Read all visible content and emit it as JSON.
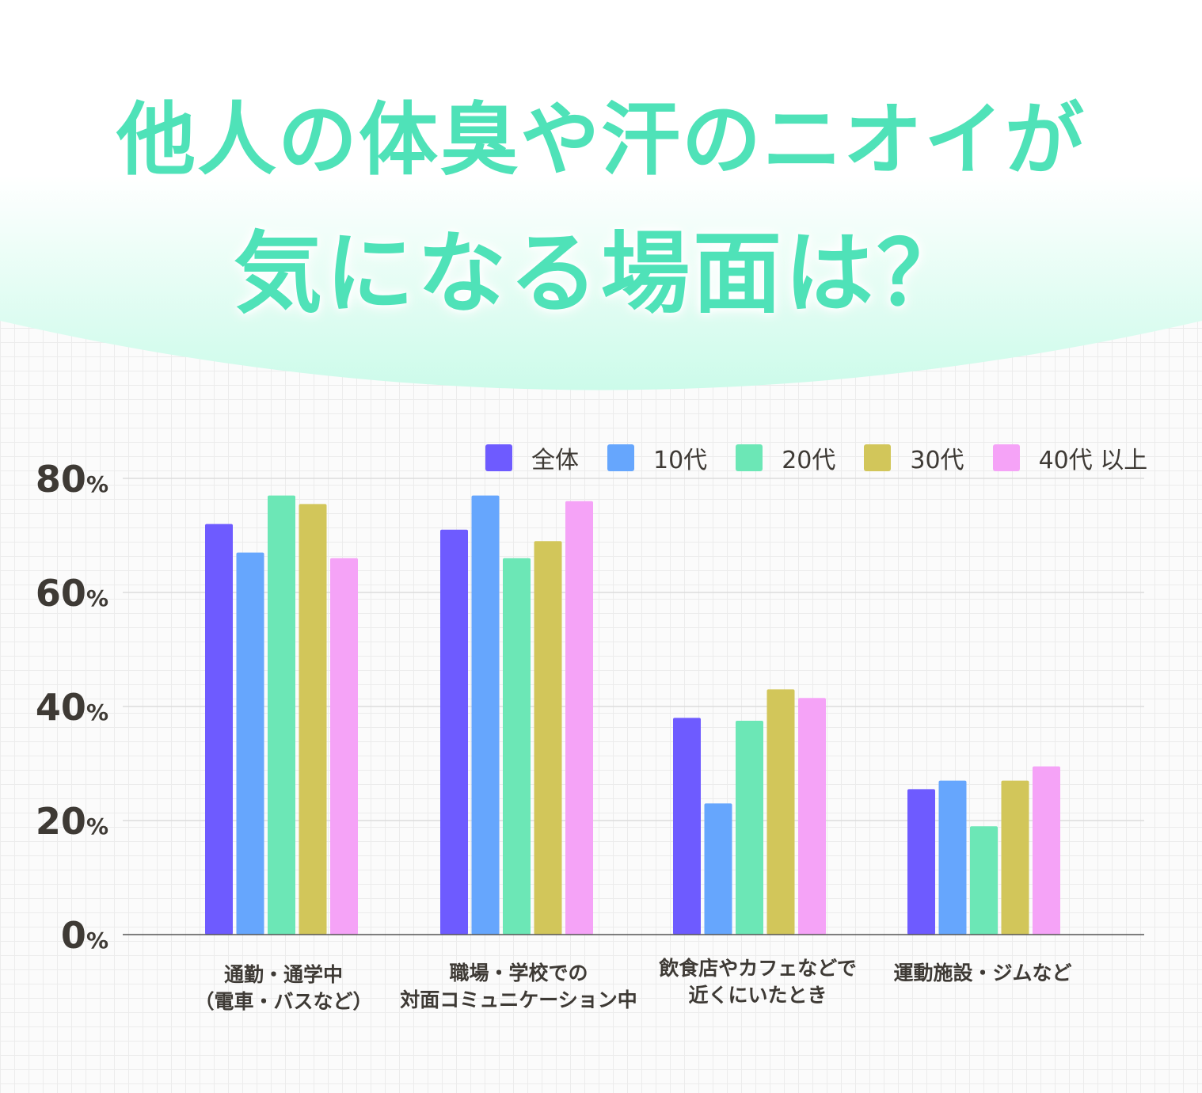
{
  "title_line1": "他人の体臭や汗のニオイが",
  "title_line2": "気になる場面は？",
  "chart_data": {
    "type": "bar",
    "title": "他人の体臭や汗のニオイが気になる場面は？",
    "categories": [
      [
        "通勤・通学中",
        "（電車・バスなど）"
      ],
      [
        "職場・学校での",
        "対面コミュニケーション中"
      ],
      [
        "飲食店やカフェなどで",
        "近くにいたとき"
      ],
      [
        "運動施設・ジムなど"
      ]
    ],
    "series": [
      {
        "name": "全体",
        "color": "#6e5bff",
        "values": [
          72,
          71,
          38,
          25.5
        ]
      },
      {
        "name": "10代",
        "color": "#66a6fd",
        "values": [
          67,
          77,
          23,
          27
        ]
      },
      {
        "name": "20代",
        "color": "#6ce7b6",
        "values": [
          77,
          66,
          37.5,
          19
        ]
      },
      {
        "name": "30代",
        "color": "#d2c65a",
        "values": [
          75.5,
          69,
          43,
          27
        ]
      },
      {
        "name": "40代以上",
        "color": "#f5a3f7",
        "values": [
          66,
          76,
          41.5,
          29.5
        ]
      }
    ],
    "legend_labels": [
      "全体",
      "10代",
      "20代",
      "30代",
      "40代 以上"
    ],
    "yticks": [
      "0",
      "20",
      "40",
      "60",
      "80"
    ],
    "ytick_unit": "%",
    "ylim": [
      0,
      80
    ],
    "grid": true,
    "legend_position": "top-right",
    "xlabel": "",
    "ylabel": ""
  }
}
